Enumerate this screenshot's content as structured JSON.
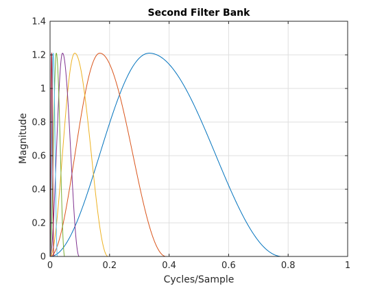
{
  "chart_data": {
    "type": "line",
    "title": "Second Filter Bank",
    "xlabel": "Cycles/Sample",
    "ylabel": "Magnitude",
    "xlim": [
      0,
      1
    ],
    "ylim": [
      0,
      1.4
    ],
    "xticks": [
      0,
      0.2,
      0.4,
      0.6,
      0.8,
      1
    ],
    "xtick_labels": [
      "0",
      "0.2",
      "0.4",
      "0.6",
      "0.8",
      "1"
    ],
    "yticks": [
      0,
      0.2,
      0.4,
      0.6,
      0.8,
      1,
      1.2,
      1.4
    ],
    "ytick_labels": [
      "0",
      "0.2",
      "0.4",
      "0.6",
      "0.8",
      "1",
      "1.2",
      "1.4"
    ],
    "grid": true,
    "legend": false,
    "series": [
      {
        "color": "#0072BD",
        "peak_x": 0.333,
        "peak_y": 1.21,
        "support": [
          0.0,
          0.78
        ]
      },
      {
        "color": "#D95319",
        "peak_x": 0.167,
        "peak_y": 1.21,
        "support": [
          0.0,
          0.39
        ]
      },
      {
        "color": "#EDB120",
        "peak_x": 0.083,
        "peak_y": 1.21,
        "support": [
          0.0,
          0.195
        ]
      },
      {
        "color": "#7E2F8E",
        "peak_x": 0.042,
        "peak_y": 1.21,
        "support": [
          0.0,
          0.098
        ]
      },
      {
        "color": "#77AC30",
        "peak_x": 0.021,
        "peak_y": 1.21,
        "support": [
          0.0,
          0.049
        ]
      },
      {
        "color": "#4DBEEE",
        "peak_x": 0.0104,
        "peak_y": 1.21,
        "support": [
          0.0,
          0.0245
        ]
      },
      {
        "color": "#A2142F",
        "peak_x": 0.0052,
        "peak_y": 1.21,
        "support": [
          0.0,
          0.0125
        ]
      }
    ]
  }
}
